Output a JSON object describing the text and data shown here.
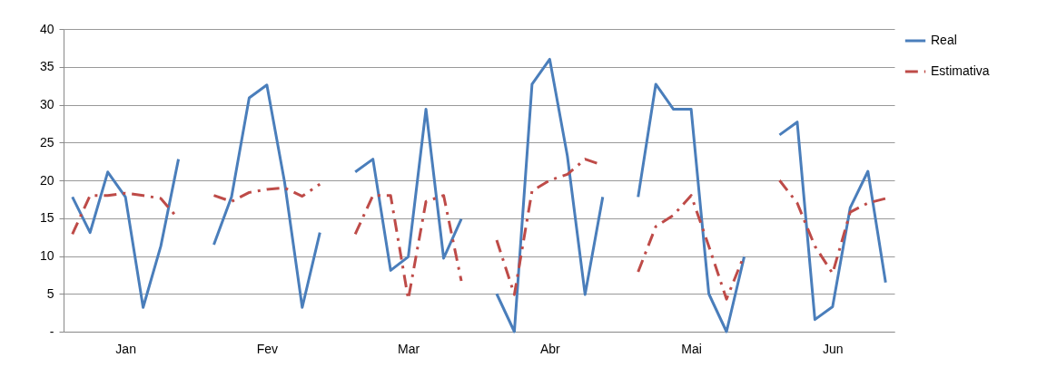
{
  "chart_data": {
    "type": "line",
    "categories": [
      null,
      null,
      null,
      "Jan",
      null,
      null,
      null,
      null,
      null,
      null,
      null,
      "Fev",
      null,
      null,
      null,
      null,
      null,
      null,
      null,
      "Mar",
      null,
      null,
      null,
      null,
      null,
      null,
      null,
      "Abr",
      null,
      null,
      null,
      null,
      null,
      null,
      null,
      "Mai",
      null,
      null,
      null,
      null,
      null,
      null,
      null,
      "Jun",
      null,
      null,
      null
    ],
    "series": [
      {
        "name": "Real",
        "color": "#4a7ebb",
        "line_style": "solid",
        "values": [
          17.8,
          13.1,
          21.1,
          17.8,
          3.2,
          11.3,
          22.8,
          null,
          11.5,
          17.8,
          30.9,
          32.6,
          19.8,
          3.2,
          13.1,
          null,
          21.1,
          22.8,
          8.1,
          9.9,
          29.4,
          9.7,
          14.9,
          null,
          5.0,
          0,
          32.7,
          36.0,
          23.2,
          4.9,
          17.8,
          null,
          17.8,
          32.7,
          29.4,
          29.4,
          5.0,
          0,
          9.9,
          null,
          26.0,
          27.7,
          1.6,
          3.3,
          16.4,
          21.2,
          6.5
        ]
      },
      {
        "name": "Estimativa",
        "color": "#be4b48",
        "line_style": "dashed",
        "values": [
          12.9,
          18.0,
          18.0,
          18.3,
          18.0,
          17.6,
          14.9,
          null,
          18.0,
          17.2,
          18.4,
          18.8,
          19.0,
          17.9,
          19.5,
          null,
          12.9,
          18.0,
          18.0,
          4.3,
          17.2,
          18.0,
          6.7,
          null,
          12.1,
          4.9,
          18.6,
          20.0,
          20.8,
          22.8,
          22.0,
          null,
          7.9,
          13.9,
          15.4,
          18.0,
          11.3,
          4.3,
          10.1,
          null,
          20.0,
          17.0,
          11.3,
          7.7,
          15.8,
          17.0,
          17.6
        ]
      }
    ],
    "ylim": [
      0,
      40
    ],
    "yticks": [
      {
        "value": 0,
        "label": "-"
      },
      5,
      10,
      15,
      20,
      25,
      30,
      35,
      40
    ],
    "grid": "y",
    "legend": "right",
    "marker": "none"
  }
}
